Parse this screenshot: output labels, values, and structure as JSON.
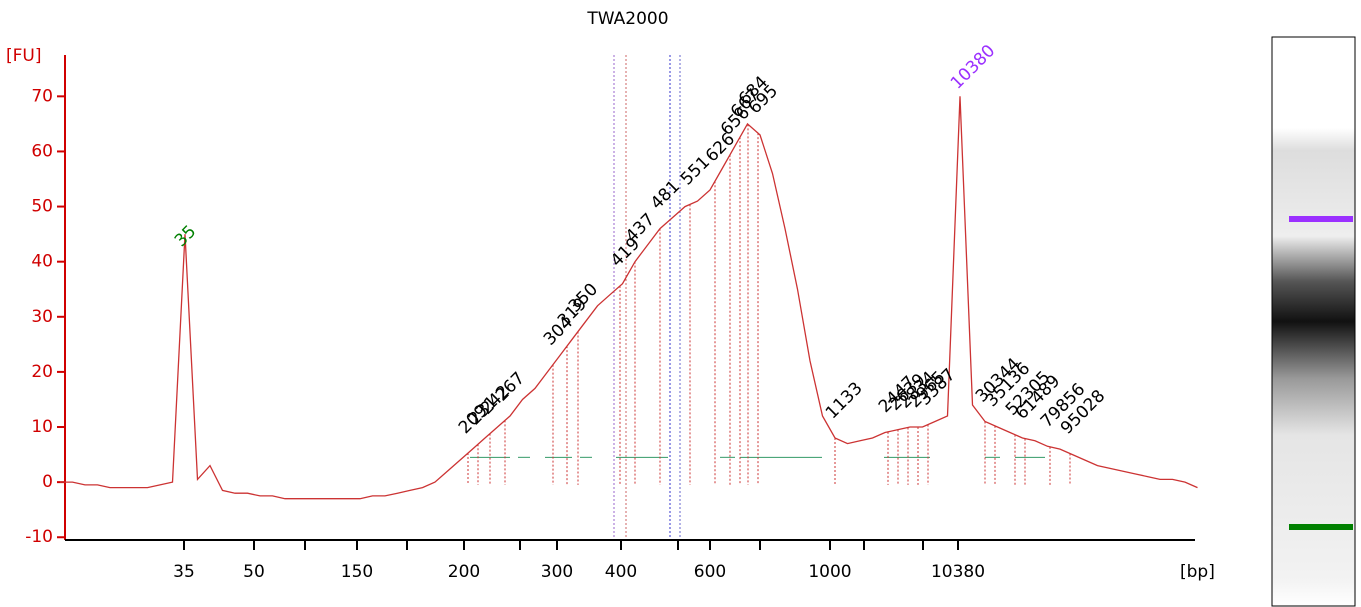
{
  "chart_data": {
    "type": "line",
    "title": "TWA2000",
    "ylabel": "[FU]",
    "xlabel": "[bp]",
    "ylim": [
      -10.5,
      77.5
    ],
    "yticks": [
      -10,
      0,
      10,
      20,
      30,
      40,
      50,
      60,
      70
    ],
    "xticks": [
      35,
      50,
      150,
      200,
      300,
      400,
      600,
      1000,
      10380
    ],
    "colors": {
      "trace": "#cc3333",
      "axis": "#d00000",
      "lower_marker": "#008000",
      "upper_marker": "#9b30ff",
      "label": "#000000"
    },
    "values": [
      0,
      0,
      -0.5,
      -0.5,
      -1,
      -1,
      -1,
      -1,
      -0.5,
      0,
      45,
      0.5,
      3,
      -1.5,
      -2,
      -2,
      -2.5,
      -2.5,
      -3,
      -3,
      -3,
      -3,
      -3,
      -3,
      -3,
      -2.5,
      -2.5,
      -2,
      -1.5,
      -1,
      0,
      2,
      4,
      6,
      8,
      10,
      12,
      15,
      17,
      20,
      23,
      26,
      29,
      32,
      34,
      36,
      40,
      43,
      46,
      48,
      50,
      51,
      53,
      57,
      61,
      65,
      63,
      56,
      46,
      35,
      22,
      12,
      8,
      7,
      7.5,
      8,
      9,
      9.5,
      10,
      10,
      11,
      12,
      70,
      14,
      11,
      10,
      9,
      8,
      7.5,
      6.5,
      6,
      5,
      4,
      3,
      2.5,
      2,
      1.5,
      1,
      0.5,
      0.5,
      0,
      -1
    ],
    "peaks": [
      35,
      209,
      231,
      242,
      267,
      304,
      319,
      350,
      419,
      437,
      481,
      551,
      626,
      656,
      667,
      684,
      695,
      1133,
      2447,
      2639,
      2834,
      2965,
      3387,
      10380,
      30344,
      35136,
      52305,
      61489,
      79856,
      95028
    ]
  }
}
